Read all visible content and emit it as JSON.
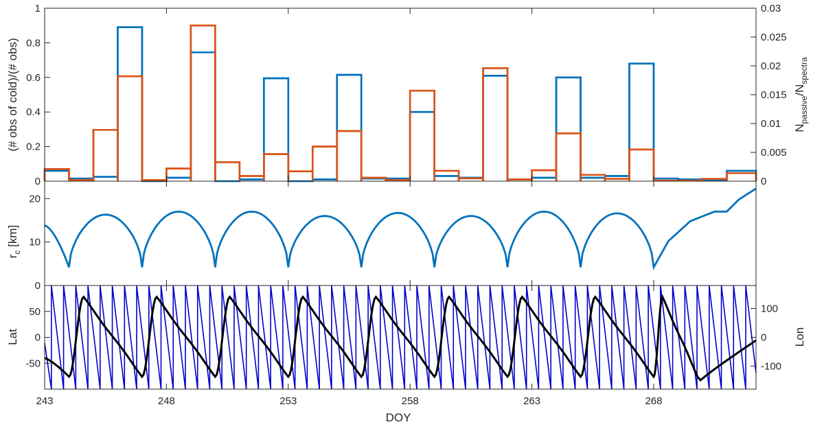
{
  "colors": {
    "blue": "#0072BD",
    "orange": "#D95319",
    "navy": "#0000CC",
    "black": "#000000",
    "axis": "#262626"
  },
  "chart_data": [
    {
      "type": "histogram",
      "ylabel_left": "(# obs of cold)/(# obs)",
      "ylabel_right": "N_passive/N_spectra",
      "ylabel_right_main1": "N",
      "ylabel_right_sub1": "passive",
      "ylabel_right_main2": "/N",
      "ylabel_right_sub2": "spectra",
      "xlim": [
        243,
        272.2
      ],
      "ylim_left": [
        0,
        1
      ],
      "ylim_right": [
        0,
        0.03
      ],
      "yticks_left": [
        "0",
        "0.2",
        "0.4",
        "0.6",
        "0.8",
        "1"
      ],
      "yticks_right": [
        "0",
        "0.005",
        "0.01",
        "0.015",
        "0.02",
        "0.025",
        "0.03"
      ],
      "bin_edges": [
        243,
        244,
        245,
        246,
        247,
        248,
        249,
        250,
        251,
        252,
        253,
        254,
        255,
        256,
        257,
        258,
        259,
        260,
        261,
        262,
        263,
        264,
        265,
        266,
        267,
        268,
        269,
        270,
        271,
        272.2
      ],
      "series": [
        {
          "axis": "left",
          "color": "blue",
          "values": [
            0.06,
            0.015,
            0.025,
            0.89,
            0.0,
            0.02,
            0.745,
            0.0,
            0.01,
            0.595,
            0.0,
            0.01,
            0.615,
            0.015,
            0.015,
            0.4,
            0.03,
            0.02,
            0.61,
            0.01,
            0.02,
            0.6,
            0.02,
            0.03,
            0.68,
            0.015,
            0.01,
            0.005,
            0.06
          ]
        },
        {
          "axis": "right",
          "color": "orange",
          "values": [
            0.0021,
            0.0002,
            0.0089,
            0.0182,
            0.0002,
            0.0022,
            0.027,
            0.0033,
            0.0009,
            0.0047,
            0.0017,
            0.006,
            0.0087,
            0.0006,
            0.0002,
            0.0157,
            0.0018,
            0.0005,
            0.0196,
            0.0003,
            0.0019,
            0.0083,
            0.0011,
            0.0004,
            0.0055,
            0.0001,
            0.0001,
            0.0004,
            0.0014
          ]
        }
      ]
    },
    {
      "type": "line",
      "ylabel_main": "r",
      "ylabel_sub": "c",
      "ylabel_unit": " [km]",
      "xlim": [
        243,
        272.2
      ],
      "ylim": [
        0,
        24
      ],
      "yticks": [
        "10",
        "20"
      ],
      "ytick_values": [
        10,
        20
      ],
      "color": "blue",
      "minima_x": [
        244.0,
        247.0,
        250.0,
        253.0,
        256.0,
        259.0,
        262.0,
        265.0,
        268.0
      ],
      "arch_peaks": [
        16.3,
        17.0,
        17.0,
        16.0,
        16.7,
        16.0,
        17.0,
        16.6
      ],
      "min_value": 4.2,
      "start_value": 13.8,
      "tail": [
        [
          268.6,
          10.2
        ],
        [
          269.5,
          14.8
        ],
        [
          270.5,
          17.0
        ],
        [
          271.0,
          17.0
        ],
        [
          271.5,
          19.8
        ],
        [
          272.2,
          22.3
        ]
      ]
    },
    {
      "type": "line",
      "ylabel_left": "Lat",
      "ylabel_right": "Lon",
      "xlabel": "DOY",
      "xlim": [
        243,
        272.2
      ],
      "ylim_left": [
        -100,
        100
      ],
      "ylim_right": [
        -180,
        180
      ],
      "yticks_left": [
        "-50",
        "0",
        "50"
      ],
      "ytick_values_left": [
        -50,
        0,
        50
      ],
      "yticks_right": [
        "-100",
        "0",
        "100"
      ],
      "ytick_values_right": [
        -100,
        0,
        100
      ],
      "xticks": [
        "243",
        "248",
        "253",
        "258",
        "263",
        "268"
      ],
      "xtick_values": [
        243,
        248,
        253,
        258,
        263,
        268
      ],
      "lat_series": {
        "color": "black",
        "start": -40,
        "start_pre": -72,
        "peak": 78,
        "trough": -76,
        "tail_end": -6,
        "minima_x": [
          244.0,
          247.0,
          250.0,
          253.0,
          256.0,
          259.0,
          262.0,
          265.0,
          268.0,
          269.8
        ]
      },
      "lon_series": {
        "color": "navy",
        "period_days": 0.5,
        "start_value": -20,
        "min": -180,
        "max": 180
      }
    }
  ]
}
